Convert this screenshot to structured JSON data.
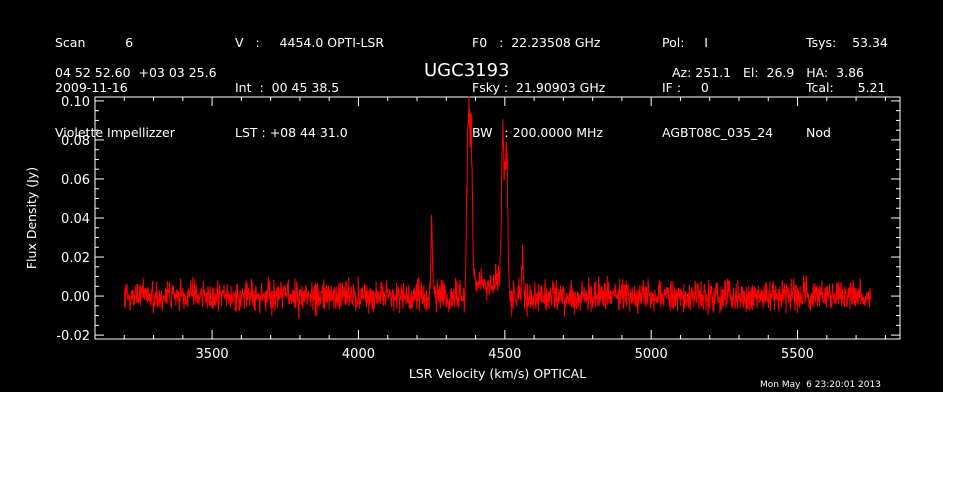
{
  "header": {
    "col1": [
      "Scan          6",
      "2009-11-16",
      "Violette Impellizzer"
    ],
    "col2": [
      "V   :     4454.0 OPTI-LSR",
      "Int  :  00 45 38.5",
      "LST : +08 44 31.0"
    ],
    "col3": [
      "F0   :  22.23508 GHz",
      "Fsky :  21.90903 GHz",
      "BW   : 200.0000 MHz"
    ],
    "col4": [
      "Pol:     I",
      "IF :     0",
      "AGBT08C_035_24"
    ],
    "col5": [
      "Tsys:    53.34",
      "Tcal:      5.21",
      "Nod"
    ],
    "coords": "04 52 52.60  +03 03 25.6",
    "source": "UGC3193",
    "azelha": "Az: 251.1   El:  26.9   HA:  3.86"
  },
  "footer": {
    "timestamp": "Mon May  6 23:20:01 2013"
  },
  "chart_data": {
    "type": "line",
    "title": "UGC3193",
    "xlabel": "LSR Velocity (km/s) OPTICAL",
    "ylabel": "Flux Density (Jy)",
    "xlim": [
      3100,
      5850
    ],
    "ylim": [
      -0.022,
      0.102
    ],
    "x_ticks": [
      3500,
      4000,
      4500,
      5000,
      5500
    ],
    "y_ticks": [
      -0.02,
      0.0,
      0.02,
      0.04,
      0.06,
      0.08,
      0.1
    ],
    "y_tick_labels": [
      "-0.02",
      "0.00",
      "0.02",
      "0.04",
      "0.06",
      "0.08",
      "0.10"
    ],
    "grid": false,
    "series": [
      {
        "color": "#ff0000",
        "x_range": [
          3200,
          5750
        ],
        "baseline": 0.0,
        "noise_rms": 0.004,
        "features": [
          {
            "x": 4250,
            "peak": 0.032
          },
          {
            "x": 4375,
            "peak": 0.087
          },
          {
            "x": 4385,
            "peak": 0.075
          },
          {
            "x": 4493,
            "peak": 0.078
          },
          {
            "x": 4505,
            "peak": 0.075
          },
          {
            "x": 4560,
            "peak": 0.018
          }
        ]
      }
    ]
  },
  "colors": {
    "background": "#000000",
    "axes": "#ffffff",
    "trace": "#ff0000"
  }
}
